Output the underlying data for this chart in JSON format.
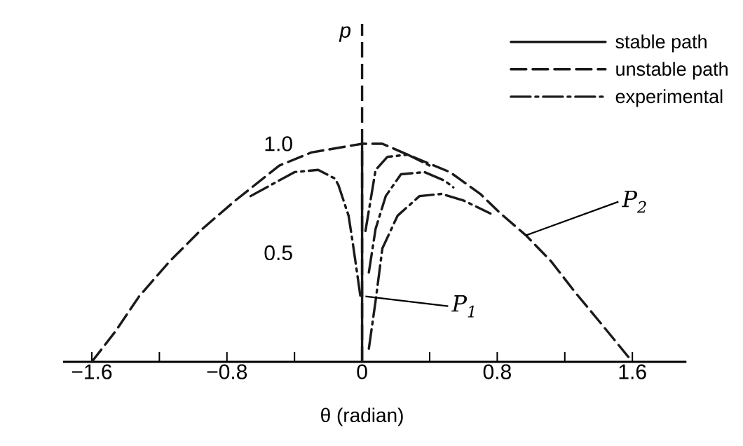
{
  "chart_data": {
    "type": "line",
    "xlabel": "θ (radian)",
    "ylabel": "p",
    "legend": "top right",
    "xlim": [
      -1.77,
      1.92
    ],
    "ylim": [
      0,
      1.55
    ],
    "xticks": [
      {
        "value": -1.6,
        "label": "−1.6"
      },
      {
        "value": -1.2,
        "label": null
      },
      {
        "value": -0.8,
        "label": "−0.8"
      },
      {
        "value": -0.4,
        "label": null
      },
      0,
      {
        "value": 0.4,
        "label": null
      },
      0.8,
      {
        "value": 1.2,
        "label": null
      },
      1.6
    ],
    "yticks": [
      0.5,
      {
        "value": 1.0,
        "label": "1.0"
      }
    ],
    "series": [
      {
        "name": "stable path",
        "color": "#1a1a1a",
        "line_style": "solid",
        "x": [
          0,
          0
        ],
        "values": [
          0,
          1.0
        ]
      },
      {
        "name": "unstable path",
        "color": "#1a1a1a",
        "line_style": "dashed",
        "x": [
          -1.6,
          -1.46,
          -1.32,
          -1.14,
          -0.96,
          -0.75,
          -0.49,
          -0.3,
          0,
          0.12,
          0.3,
          0.52,
          0.7,
          0.82,
          0.97,
          1.12,
          1.26,
          1.41,
          1.6
        ],
        "values": [
          0,
          0.14,
          0.3,
          0.46,
          0.6,
          0.74,
          0.9,
          0.96,
          1.0,
          1.0,
          0.94,
          0.87,
          0.77,
          0.68,
          0.58,
          0.46,
          0.32,
          0.18,
          0
        ]
      },
      {
        "name": "experimental",
        "color": "#1a1a1a",
        "line_style": "dashdot",
        "x": [
          -0.66,
          -0.4,
          -0.26,
          -0.16,
          -0.14,
          -0.08,
          -0.06,
          -0.03,
          -0.01
        ],
        "values": [
          0.76,
          0.87,
          0.88,
          0.84,
          0.81,
          0.67,
          0.57,
          0.41,
          0.3
        ]
      },
      {
        "color": "#1a1a1a",
        "line_style": "dashdot",
        "x": [
          0.02,
          0.05,
          0.08,
          0.15,
          0.27,
          0.4
        ],
        "values": [
          0.6,
          0.74,
          0.88,
          0.94,
          0.95,
          0.9
        ]
      },
      {
        "color": "#1a1a1a",
        "line_style": "dashdot",
        "x": [
          0.04,
          0.08,
          0.14,
          0.23,
          0.37,
          0.49,
          0.54
        ],
        "values": [
          0.41,
          0.61,
          0.76,
          0.86,
          0.87,
          0.83,
          0.8
        ]
      },
      {
        "color": "#1a1a1a",
        "line_style": "dashdot",
        "x": [
          0.04,
          0.08,
          0.12,
          0.21,
          0.34,
          0.47,
          0.6,
          0.76
        ],
        "values": [
          0.06,
          0.28,
          0.52,
          0.67,
          0.76,
          0.77,
          0.74,
          0.68
        ]
      }
    ],
    "annotations": [
      {
        "text": "P$_{1}$",
        "x": 0.02,
        "y": 0.3
      },
      {
        "text": "P$_{2}$",
        "x": 0.97,
        "y": 0.58
      }
    ]
  }
}
